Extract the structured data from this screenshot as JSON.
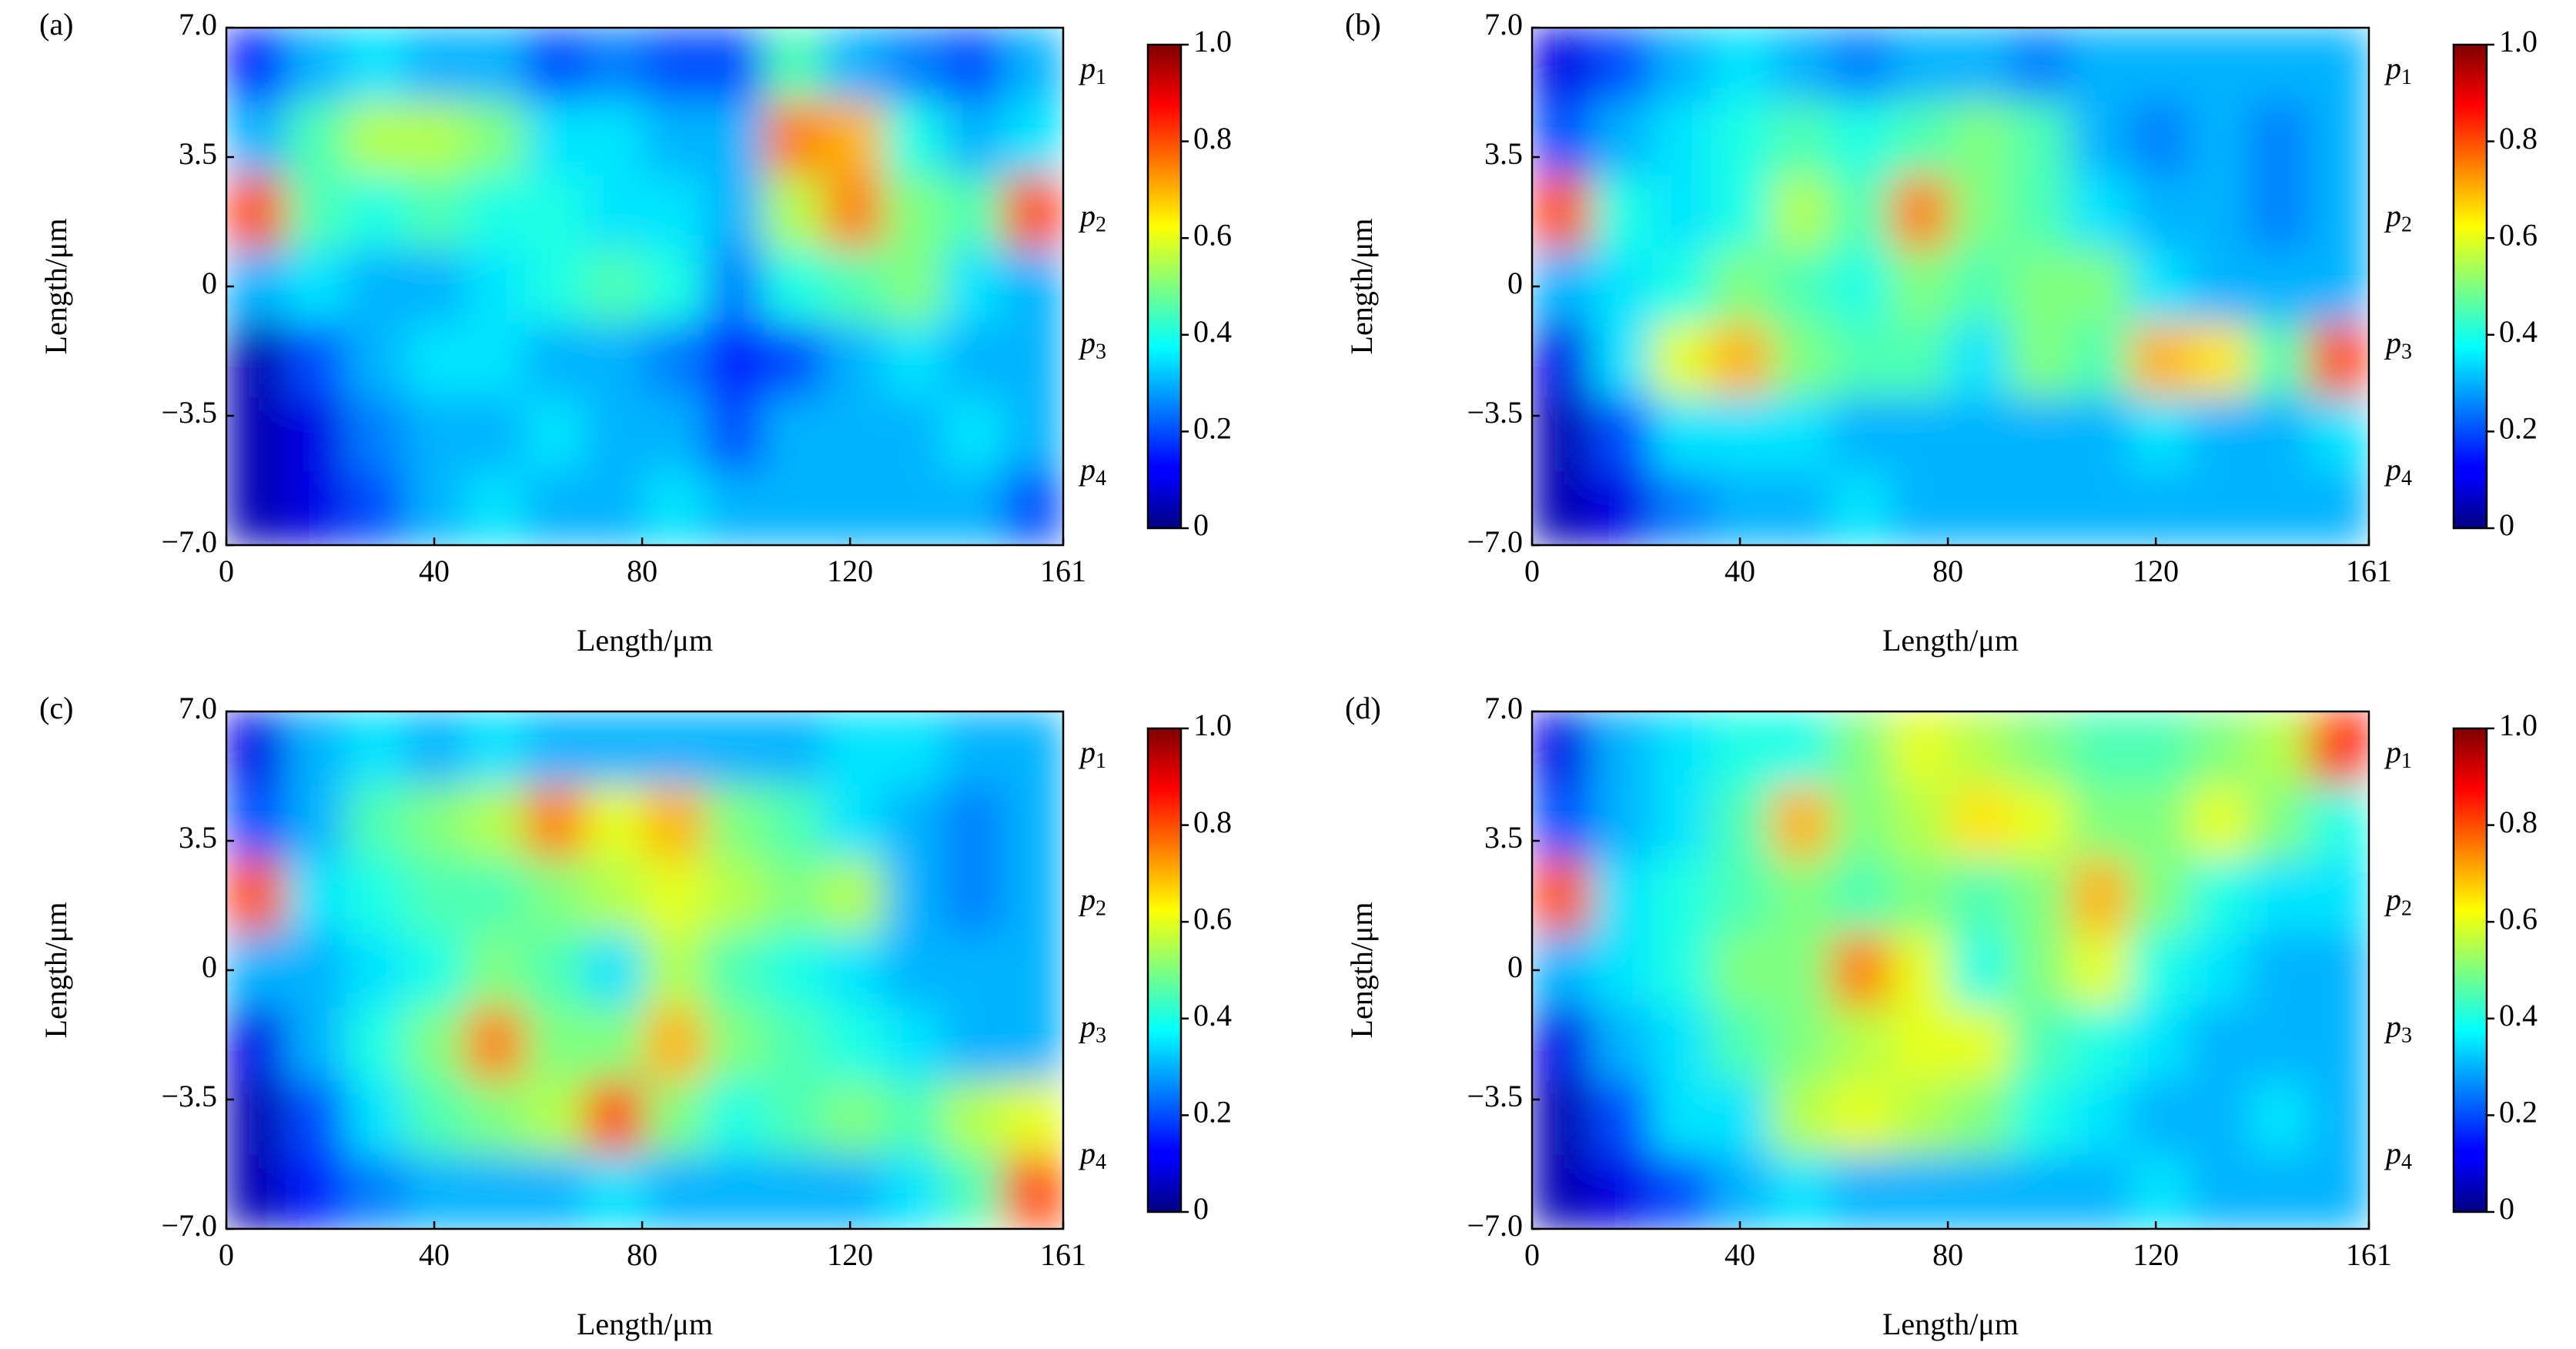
{
  "chart_data": [
    {
      "type": "heatmap",
      "panel_label": "(a)",
      "xlabel": "Length/μm",
      "ylabel": "Length/μm",
      "colormap": "jet",
      "origin": "upper",
      "xlim": [
        0,
        161
      ],
      "xticks": [
        0,
        40,
        80,
        120,
        161
      ],
      "ylim": [
        -7,
        7
      ],
      "yticks": [
        {
          "value": -7,
          "label": "−7.0"
        },
        {
          "value": -3.5,
          "label": "−3.5"
        },
        0,
        3.5,
        {
          "value": 7,
          "label": "7.0"
        }
      ],
      "clim": [
        0,
        1
      ],
      "colorbar_ticks": [
        0,
        0.2,
        0.4,
        0.6,
        0.8,
        {
          "value": 1,
          "label": "1.0"
        }
      ],
      "port_labels": [
        {
          "symbol": "p",
          "index": "1"
        },
        {
          "symbol": "p",
          "index": "2"
        },
        {
          "symbol": "p",
          "index": "3"
        },
        {
          "symbol": "p",
          "index": "4"
        }
      ],
      "values": [
        [
          0.15,
          0.3,
          0.35,
          0.3,
          0.3,
          0.2,
          0.25,
          0.2,
          0.2,
          0.45,
          0.3,
          0.25,
          0.2,
          0.3
        ],
        [
          0.3,
          0.45,
          0.55,
          0.55,
          0.5,
          0.35,
          0.35,
          0.3,
          0.3,
          0.75,
          0.7,
          0.4,
          0.3,
          0.35
        ],
        [
          0.8,
          0.45,
          0.4,
          0.45,
          0.4,
          0.4,
          0.35,
          0.35,
          0.3,
          0.55,
          0.75,
          0.5,
          0.45,
          0.8
        ],
        [
          0.3,
          0.35,
          0.3,
          0.3,
          0.35,
          0.4,
          0.45,
          0.4,
          0.25,
          0.4,
          0.45,
          0.5,
          0.35,
          0.3
        ],
        [
          0.05,
          0.2,
          0.3,
          0.35,
          0.35,
          0.3,
          0.3,
          0.25,
          0.15,
          0.2,
          0.3,
          0.35,
          0.3,
          0.3
        ],
        [
          0.05,
          0.1,
          0.25,
          0.3,
          0.3,
          0.35,
          0.3,
          0.3,
          0.2,
          0.3,
          0.3,
          0.3,
          0.35,
          0.3
        ],
        [
          0.05,
          0.1,
          0.2,
          0.3,
          0.35,
          0.3,
          0.3,
          0.35,
          0.3,
          0.3,
          0.3,
          0.3,
          0.3,
          0.2
        ]
      ]
    },
    {
      "type": "heatmap",
      "panel_label": "(b)",
      "xlabel": "Length/μm",
      "ylabel": "Length/μm",
      "colormap": "jet",
      "origin": "upper",
      "xlim": [
        0,
        161
      ],
      "xticks": [
        0,
        40,
        80,
        120,
        161
      ],
      "ylim": [
        -7,
        7
      ],
      "yticks": [
        {
          "value": -7,
          "label": "−7.0"
        },
        {
          "value": -3.5,
          "label": "−3.5"
        },
        0,
        3.5,
        {
          "value": 7,
          "label": "7.0"
        }
      ],
      "clim": [
        0,
        1
      ],
      "colorbar_ticks": [
        0,
        0.2,
        0.4,
        0.6,
        0.8,
        {
          "value": 1,
          "label": "1.0"
        }
      ],
      "port_labels": [
        {
          "symbol": "p",
          "index": "1"
        },
        {
          "symbol": "p",
          "index": "2"
        },
        {
          "symbol": "p",
          "index": "3"
        },
        {
          "symbol": "p",
          "index": "4"
        }
      ],
      "values": [
        [
          0.1,
          0.2,
          0.3,
          0.35,
          0.3,
          0.25,
          0.3,
          0.3,
          0.25,
          0.3,
          0.3,
          0.3,
          0.3,
          0.3
        ],
        [
          0.2,
          0.3,
          0.35,
          0.4,
          0.45,
          0.4,
          0.45,
          0.5,
          0.45,
          0.3,
          0.25,
          0.3,
          0.25,
          0.3
        ],
        [
          0.8,
          0.4,
          0.35,
          0.4,
          0.55,
          0.45,
          0.75,
          0.5,
          0.45,
          0.35,
          0.3,
          0.3,
          0.25,
          0.3
        ],
        [
          0.3,
          0.35,
          0.4,
          0.5,
          0.45,
          0.4,
          0.5,
          0.45,
          0.5,
          0.5,
          0.35,
          0.3,
          0.3,
          0.3
        ],
        [
          0.1,
          0.35,
          0.6,
          0.7,
          0.5,
          0.45,
          0.45,
          0.35,
          0.5,
          0.45,
          0.7,
          0.65,
          0.45,
          0.8
        ],
        [
          0.05,
          0.2,
          0.35,
          0.35,
          0.35,
          0.3,
          0.3,
          0.3,
          0.3,
          0.3,
          0.35,
          0.3,
          0.3,
          0.35
        ],
        [
          0.05,
          0.1,
          0.25,
          0.3,
          0.3,
          0.35,
          0.3,
          0.3,
          0.3,
          0.3,
          0.3,
          0.3,
          0.3,
          0.3
        ]
      ]
    },
    {
      "type": "heatmap",
      "panel_label": "(c)",
      "xlabel": "Length/μm",
      "ylabel": "Length/μm",
      "colormap": "jet",
      "origin": "upper",
      "xlim": [
        0,
        161
      ],
      "xticks": [
        0,
        40,
        80,
        120,
        161
      ],
      "ylim": [
        -7,
        7
      ],
      "yticks": [
        {
          "value": -7,
          "label": "−7.0"
        },
        {
          "value": -3.5,
          "label": "−3.5"
        },
        0,
        3.5,
        {
          "value": 7,
          "label": "7.0"
        }
      ],
      "clim": [
        0,
        1
      ],
      "colorbar_ticks": [
        0,
        0.2,
        0.4,
        0.6,
        0.8,
        {
          "value": 1,
          "label": "1.0"
        }
      ],
      "port_labels": [
        {
          "symbol": "p",
          "index": "1"
        },
        {
          "symbol": "p",
          "index": "2"
        },
        {
          "symbol": "p",
          "index": "3"
        },
        {
          "symbol": "p",
          "index": "4"
        }
      ],
      "values": [
        [
          0.1,
          0.3,
          0.35,
          0.3,
          0.35,
          0.3,
          0.3,
          0.3,
          0.3,
          0.3,
          0.35,
          0.35,
          0.3,
          0.3
        ],
        [
          0.2,
          0.3,
          0.45,
          0.5,
          0.55,
          0.75,
          0.6,
          0.7,
          0.5,
          0.45,
          0.35,
          0.3,
          0.25,
          0.3
        ],
        [
          0.8,
          0.35,
          0.4,
          0.45,
          0.45,
          0.5,
          0.55,
          0.6,
          0.55,
          0.5,
          0.55,
          0.3,
          0.25,
          0.3
        ],
        [
          0.3,
          0.3,
          0.35,
          0.4,
          0.5,
          0.45,
          0.35,
          0.55,
          0.45,
          0.4,
          0.35,
          0.3,
          0.3,
          0.3
        ],
        [
          0.1,
          0.3,
          0.4,
          0.5,
          0.75,
          0.5,
          0.5,
          0.7,
          0.5,
          0.45,
          0.4,
          0.35,
          0.3,
          0.3
        ],
        [
          0.05,
          0.2,
          0.35,
          0.45,
          0.5,
          0.55,
          0.8,
          0.5,
          0.4,
          0.45,
          0.5,
          0.45,
          0.55,
          0.6
        ],
        [
          0.05,
          0.15,
          0.25,
          0.3,
          0.3,
          0.3,
          0.35,
          0.3,
          0.3,
          0.3,
          0.3,
          0.35,
          0.45,
          0.8
        ]
      ]
    },
    {
      "type": "heatmap",
      "panel_label": "(d)",
      "xlabel": "Length/μm",
      "ylabel": "Length/μm",
      "colormap": "jet",
      "origin": "upper",
      "xlim": [
        0,
        161
      ],
      "xticks": [
        0,
        40,
        80,
        120,
        161
      ],
      "ylim": [
        -7,
        7
      ],
      "yticks": [
        {
          "value": -7,
          "label": "−7.0"
        },
        {
          "value": -3.5,
          "label": "−3.5"
        },
        0,
        3.5,
        {
          "value": 7,
          "label": "7.0"
        }
      ],
      "clim": [
        0,
        1
      ],
      "colorbar_ticks": [
        0,
        0.2,
        0.4,
        0.6,
        0.8,
        {
          "value": 1,
          "label": "1.0"
        }
      ],
      "port_labels": [
        {
          "symbol": "p",
          "index": "1"
        },
        {
          "symbol": "p",
          "index": "2"
        },
        {
          "symbol": "p",
          "index": "3"
        },
        {
          "symbol": "p",
          "index": "4"
        }
      ],
      "values": [
        [
          0.1,
          0.3,
          0.35,
          0.4,
          0.4,
          0.5,
          0.6,
          0.55,
          0.5,
          0.45,
          0.45,
          0.5,
          0.55,
          0.85
        ],
        [
          0.2,
          0.3,
          0.35,
          0.45,
          0.7,
          0.5,
          0.55,
          0.65,
          0.6,
          0.5,
          0.5,
          0.6,
          0.5,
          0.4
        ],
        [
          0.8,
          0.35,
          0.4,
          0.45,
          0.5,
          0.45,
          0.5,
          0.45,
          0.5,
          0.7,
          0.5,
          0.4,
          0.35,
          0.35
        ],
        [
          0.3,
          0.35,
          0.4,
          0.5,
          0.5,
          0.75,
          0.6,
          0.4,
          0.5,
          0.6,
          0.4,
          0.35,
          0.3,
          0.3
        ],
        [
          0.1,
          0.3,
          0.35,
          0.45,
          0.5,
          0.55,
          0.6,
          0.6,
          0.45,
          0.4,
          0.35,
          0.3,
          0.3,
          0.3
        ],
        [
          0.05,
          0.2,
          0.35,
          0.35,
          0.55,
          0.6,
          0.55,
          0.5,
          0.4,
          0.35,
          0.3,
          0.3,
          0.35,
          0.3
        ],
        [
          0.05,
          0.1,
          0.2,
          0.3,
          0.35,
          0.3,
          0.3,
          0.3,
          0.3,
          0.3,
          0.35,
          0.3,
          0.3,
          0.3
        ]
      ]
    }
  ]
}
